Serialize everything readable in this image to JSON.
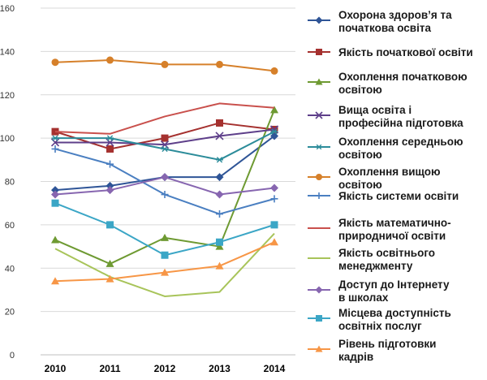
{
  "chart_data": {
    "type": "line",
    "categories": [
      "2010",
      "2011",
      "2012",
      "2013",
      "2014"
    ],
    "ylim": [
      0,
      160
    ],
    "yticks": [
      0,
      20,
      40,
      60,
      80,
      100,
      120,
      140,
      160
    ],
    "grid": "horizontal",
    "legend": "right",
    "series": [
      {
        "name": "Охорона здоров’я та початкова освіта",
        "values": [
          76,
          78,
          82,
          82,
          101
        ],
        "color": "#2f5597",
        "marker": "diamond"
      },
      {
        "name": "Якість початкової освіти",
        "values": [
          103,
          95,
          100,
          107,
          104
        ],
        "color": "#a5312f",
        "marker": "square"
      },
      {
        "name": "Охоплення початковою освітою",
        "values": [
          53,
          42,
          54,
          50,
          113
        ],
        "color": "#6e9a32",
        "marker": "triangle"
      },
      {
        "name": "Вища освіта і професійна підготовка",
        "values": [
          98,
          98,
          97,
          101,
          104
        ],
        "color": "#5e3f8a",
        "marker": "x"
      },
      {
        "name": "Охоплення середньою освітою",
        "values": [
          100,
          100,
          95,
          90,
          103
        ],
        "color": "#2c8c9a",
        "marker": "star"
      },
      {
        "name": "Охоплення вищою освітою",
        "values": [
          135,
          136,
          134,
          134,
          131
        ],
        "color": "#d6802a",
        "marker": "circle"
      },
      {
        "name": "Якість системи освіти",
        "values": [
          95,
          88,
          74,
          65,
          72
        ],
        "color": "#4a7fc1",
        "marker": "plus"
      },
      {
        "name": "Якість математично-природничої освіти",
        "values": [
          103,
          102,
          110,
          116,
          114
        ],
        "color": "#c9504c",
        "marker": "none"
      },
      {
        "name": "Якість освітнього менеджменту",
        "values": [
          49,
          36,
          27,
          29,
          56
        ],
        "color": "#a8c45a",
        "marker": "none"
      },
      {
        "name": "Доступ до Інтернету в школах",
        "values": [
          74,
          76,
          82,
          74,
          77
        ],
        "color": "#8766b0",
        "marker": "diamond"
      },
      {
        "name": "Місцева доступність освітніх послуг",
        "values": [
          70,
          60,
          46,
          52,
          60
        ],
        "color": "#3ba6c6",
        "marker": "square"
      },
      {
        "name": "Рівень підготовки кадрів",
        "values": [
          34,
          35,
          38,
          41,
          52
        ],
        "color": "#f79646",
        "marker": "triangle"
      }
    ]
  },
  "legend_lines": [
    [
      "Охорона здоров’я та",
      "початкова освіта"
    ],
    [
      "Якість початкової освіти"
    ],
    [
      "Охоплення початковою",
      "освітою"
    ],
    [
      "Вища освіта і",
      "професійна підготовка"
    ],
    [
      "Охоплення середньою",
      "освітою"
    ],
    [
      "Охоплення вищою",
      "освітою"
    ],
    [
      "Якість системи освіти"
    ],
    [
      "Якість математично-",
      "природничої освіти"
    ],
    [
      "Якість освітнього",
      "менеджменту"
    ],
    [
      "Доступ до Інтернету",
      "в школах"
    ],
    [
      "Місцева доступність",
      "освітніх послуг"
    ],
    [
      "Рівень підготовки",
      "кадрів"
    ]
  ]
}
